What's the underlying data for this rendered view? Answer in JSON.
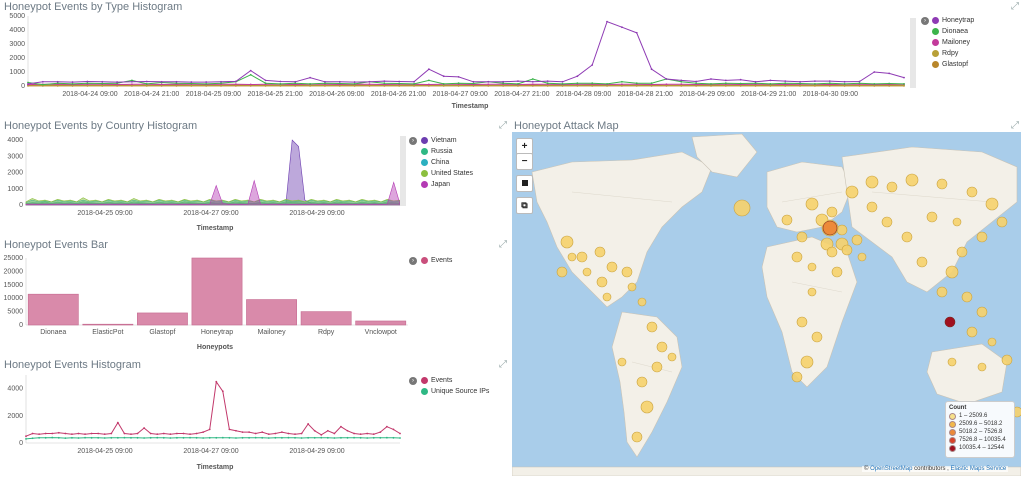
{
  "panels": {
    "type_histogram": {
      "title": "Honeypot Events by Type Histogram",
      "xlabel": "Timestamp",
      "yticks": [
        "5000",
        "4000",
        "3000",
        "2000",
        "1000",
        "0"
      ],
      "xticks": [
        "2018-04-24 09:00",
        "2018-04-24 21:00",
        "2018-04-25 09:00",
        "2018-04-25 21:00",
        "2018-04-26 09:00",
        "2018-04-26 21:00",
        "2018-04-27 09:00",
        "2018-04-27 21:00",
        "2018-04-28 09:00",
        "2018-04-28 21:00",
        "2018-04-29 09:00",
        "2018-04-29 21:00",
        "2018-04-30 09:00"
      ],
      "legend": [
        {
          "label": "Honeytrap",
          "color": "#8e3ab4"
        },
        {
          "label": "Dionaea",
          "color": "#3cb44b"
        },
        {
          "label": "Mailoney",
          "color": "#c33a9b"
        },
        {
          "label": "Rdpy",
          "color": "#b8a038"
        },
        {
          "label": "Glastopf",
          "color": "#b8862b"
        }
      ]
    },
    "country_histogram": {
      "title": "Honeypot Events by Country Histogram",
      "xlabel": "Timestamp",
      "yticks": [
        "4000",
        "3000",
        "2000",
        "1000",
        "0"
      ],
      "xticks": [
        "2018-04-25 09:00",
        "2018-04-27 09:00",
        "2018-04-29 09:00"
      ],
      "legend": [
        {
          "label": "Vietnam",
          "color": "#6c3db0"
        },
        {
          "label": "Russia",
          "color": "#2fb884"
        },
        {
          "label": "China",
          "color": "#2bb0c0"
        },
        {
          "label": "United States",
          "color": "#8cbf3f"
        },
        {
          "label": "Japan",
          "color": "#b43ab4"
        }
      ]
    },
    "events_bar": {
      "title": "Honeypot Events Bar",
      "xlabel": "Honeypots",
      "yticks": [
        "25000",
        "20000",
        "15000",
        "10000",
        "5000",
        "0"
      ],
      "legend": [
        {
          "label": "Events",
          "color": "#c94f7c"
        }
      ]
    },
    "events_histogram": {
      "title": "Honeypot Events Histogram",
      "xlabel": "Timestamp",
      "yticks": [
        "4000",
        "2000",
        "0"
      ],
      "xticks": [
        "2018-04-25 09:00",
        "2018-04-27 09:00",
        "2018-04-29 09:00"
      ],
      "legend": [
        {
          "label": "Events",
          "color": "#c2386b"
        },
        {
          "label": "Unique Source IPs",
          "color": "#2fb884"
        }
      ]
    },
    "attack_map": {
      "title": "Honeypot Attack Map",
      "controls": {
        "zoom_in": "+",
        "zoom_out": "−"
      },
      "legend_title": "Count",
      "legend": [
        {
          "label": "1 – 2509.6",
          "color": "#f7e08a"
        },
        {
          "label": "2509.6 – 5018.2",
          "color": "#f2b84b"
        },
        {
          "label": "5018.2 – 7526.8",
          "color": "#ec8a3a"
        },
        {
          "label": "7526.8 – 10035.4",
          "color": "#d9432a"
        },
        {
          "label": "10035.4 – 12544",
          "color": "#a0101f"
        }
      ],
      "attribution_prefix": "©",
      "attribution_osm": "OpenStreetMap",
      "attribution_mid": "contributors ,",
      "attribution_ems": "Elastic Maps Service"
    }
  },
  "chart_data": [
    {
      "type": "line",
      "title": "Honeypot Events by Type Histogram",
      "xlabel": "Timestamp",
      "ylim": [
        0,
        5000
      ],
      "y_ticks": [
        0,
        1000,
        2000,
        3000,
        4000,
        5000
      ],
      "series": [
        {
          "name": "Honeytrap",
          "color": "#8e3ab4",
          "values": [
            150,
            300,
            300,
            280,
            320,
            300,
            280,
            300,
            320,
            300,
            300,
            280,
            280,
            300,
            330,
            1100,
            400,
            320,
            300,
            600,
            300,
            300,
            280,
            300,
            350,
            320,
            300,
            1200,
            700,
            650,
            300,
            300,
            300,
            350,
            300,
            350,
            300,
            700,
            1500,
            4600,
            4200,
            3800,
            1200,
            500,
            400,
            320,
            500,
            400,
            450,
            300,
            400,
            350,
            300,
            350,
            350,
            300,
            320,
            1000,
            900,
            600
          ]
        },
        {
          "name": "Dionaea",
          "color": "#3cb44b",
          "values": [
            250,
            100,
            200,
            150,
            200,
            180,
            200,
            400,
            150,
            250,
            200,
            180,
            150,
            200,
            300,
            800,
            200,
            150,
            200,
            150,
            200,
            180,
            150,
            300,
            200,
            180,
            150,
            400,
            150,
            200,
            180,
            300,
            200,
            150,
            500,
            200,
            150,
            200,
            200,
            150,
            300,
            200,
            200,
            500,
            300,
            200,
            150,
            200,
            180,
            200,
            150,
            200,
            180,
            150,
            200,
            150,
            200,
            150,
            180,
            150
          ]
        },
        {
          "name": "Mailoney",
          "color": "#c33a9b",
          "values": [
            100,
            120,
            130,
            110,
            120,
            130,
            110,
            120,
            130,
            110,
            120,
            130,
            110,
            120,
            130,
            110,
            120,
            130,
            110,
            120,
            130,
            110,
            120,
            130,
            110,
            120,
            130,
            110,
            120,
            130,
            110,
            120,
            130,
            110,
            120,
            130,
            110,
            120,
            130,
            110,
            120,
            130,
            110,
            120,
            130,
            110,
            120,
            130,
            110,
            120,
            130,
            110,
            120,
            130,
            110,
            120,
            130,
            110,
            120,
            130
          ]
        },
        {
          "name": "Rdpy",
          "color": "#b8a038",
          "values": [
            50,
            60,
            70,
            60,
            50,
            60,
            70,
            60,
            50,
            60,
            70,
            60,
            50,
            60,
            70,
            60,
            50,
            60,
            70,
            60,
            50,
            60,
            70,
            60,
            50,
            60,
            70,
            60,
            50,
            60,
            70,
            60,
            50,
            60,
            70,
            60,
            50,
            60,
            70,
            60,
            50,
            60,
            70,
            60,
            50,
            60,
            70,
            60,
            50,
            60,
            70,
            60,
            50,
            60,
            70,
            60,
            50,
            60,
            70,
            60
          ]
        },
        {
          "name": "Glastopf",
          "color": "#b8862b",
          "values": [
            10,
            10,
            10,
            10,
            10,
            10,
            10,
            10,
            10,
            10,
            10,
            10,
            10,
            10,
            10,
            10,
            10,
            10,
            10,
            10,
            10,
            10,
            10,
            10,
            10,
            10,
            10,
            10,
            10,
            10,
            10,
            10,
            10,
            10,
            10,
            10,
            10,
            10,
            10,
            10,
            10,
            10,
            10,
            10,
            10,
            10,
            10,
            10,
            10,
            10,
            10,
            10,
            10,
            10,
            10,
            10,
            10,
            10,
            10,
            10
          ]
        }
      ]
    },
    {
      "type": "area",
      "title": "Honeypot Events by Country Histogram",
      "xlabel": "Timestamp",
      "ylim": [
        0,
        4000
      ],
      "series": [
        {
          "name": "Vietnam",
          "color": "#6c3db0",
          "values": [
            100,
            80,
            120,
            90,
            100,
            80,
            110,
            90,
            100,
            80,
            110,
            90,
            100,
            80,
            110,
            90,
            100,
            80,
            110,
            90,
            100,
            80,
            110,
            90,
            100,
            80,
            110,
            90,
            100,
            80,
            110,
            90,
            100,
            80,
            110,
            90,
            100,
            80,
            110,
            90,
            100,
            80,
            4000,
            3600,
            300,
            100,
            80,
            110,
            90,
            100,
            80,
            110,
            90,
            100,
            80,
            110,
            90,
            100,
            80,
            110
          ]
        },
        {
          "name": "Russia",
          "color": "#2fb884",
          "values": [
            80,
            150,
            120,
            200,
            100,
            180,
            120,
            150,
            100,
            200,
            150,
            120,
            100,
            180,
            120,
            150,
            100,
            200,
            150,
            120,
            100,
            180,
            120,
            150,
            100,
            200,
            150,
            120,
            100,
            180,
            120,
            150,
            100,
            200,
            150,
            120,
            100,
            180,
            120,
            150,
            100,
            200,
            150,
            120,
            100,
            180,
            120,
            150,
            100,
            200,
            150,
            120,
            100,
            180,
            120,
            150,
            100,
            200,
            150,
            120
          ]
        },
        {
          "name": "China",
          "color": "#2bb0c0",
          "values": [
            150,
            300,
            200,
            250,
            180,
            300,
            200,
            250,
            180,
            300,
            200,
            250,
            180,
            300,
            200,
            250,
            180,
            300,
            200,
            250,
            180,
            300,
            200,
            250,
            180,
            300,
            200,
            250,
            180,
            300,
            200,
            250,
            180,
            300,
            200,
            250,
            180,
            300,
            200,
            250,
            180,
            300,
            200,
            250,
            180,
            300,
            200,
            250,
            180,
            300,
            200,
            250,
            180,
            300,
            200,
            250,
            180,
            300,
            200,
            250
          ]
        },
        {
          "name": "United States",
          "color": "#8cbf3f",
          "values": [
            200,
            400,
            250,
            300,
            200,
            350,
            250,
            300,
            200,
            450,
            250,
            300,
            200,
            350,
            250,
            300,
            200,
            400,
            250,
            300,
            200,
            350,
            250,
            300,
            200,
            350,
            250,
            300,
            200,
            350,
            250,
            300,
            200,
            350,
            250,
            300,
            200,
            350,
            250,
            300,
            200,
            350,
            250,
            300,
            200,
            350,
            250,
            300,
            200,
            350,
            250,
            300,
            200,
            350,
            250,
            300,
            200,
            350,
            250,
            300
          ]
        },
        {
          "name": "Japan",
          "color": "#b43ab4",
          "values": [
            50,
            60,
            50,
            60,
            50,
            60,
            50,
            60,
            50,
            60,
            50,
            60,
            50,
            60,
            50,
            60,
            50,
            60,
            50,
            60,
            50,
            60,
            50,
            60,
            50,
            60,
            50,
            60,
            50,
            60,
            1200,
            100,
            50,
            60,
            50,
            60,
            1500,
            60,
            50,
            60,
            50,
            60,
            50,
            60,
            50,
            60,
            50,
            60,
            50,
            60,
            50,
            60,
            50,
            60,
            50,
            60,
            50,
            60,
            1400,
            60
          ]
        }
      ]
    },
    {
      "type": "bar",
      "title": "Honeypot Events Bar",
      "xlabel": "Honeypots",
      "ylim": [
        0,
        25000
      ],
      "categories": [
        "Dionaea",
        "ElasticPot",
        "Glastopf",
        "Honeytrap",
        "Mailoney",
        "Rdpy",
        "Vnclowpot"
      ],
      "series": [
        {
          "name": "Events",
          "color": "#c94f7c",
          "values": [
            11500,
            300,
            4500,
            26000,
            9500,
            5000,
            1500
          ]
        }
      ]
    },
    {
      "type": "line",
      "title": "Honeypot Events Histogram",
      "xlabel": "Timestamp",
      "ylim": [
        0,
        5000
      ],
      "series": [
        {
          "name": "Events",
          "color": "#c2386b",
          "values": [
            500,
            700,
            650,
            700,
            700,
            750,
            700,
            650,
            700,
            650,
            700,
            700,
            650,
            700,
            1500,
            700,
            650,
            700,
            1100,
            700,
            650,
            700,
            650,
            700,
            700,
            650,
            700,
            800,
            1000,
            4500,
            3800,
            1000,
            900,
            800,
            800,
            700,
            800,
            650,
            700,
            800,
            700,
            650,
            700,
            1400,
            900,
            600,
            900,
            700,
            1200,
            900,
            700,
            650,
            700,
            650,
            800,
            1200,
            1000,
            700
          ]
        },
        {
          "name": "Unique Source IPs",
          "color": "#2fb884",
          "values": [
            300,
            350,
            380,
            380,
            400,
            380,
            360,
            380,
            370,
            390,
            380,
            380,
            370,
            380,
            380,
            390,
            380,
            380,
            370,
            380,
            390,
            380,
            370,
            380,
            380,
            390,
            380,
            370,
            380,
            380,
            390,
            380,
            370,
            380,
            380,
            390,
            380,
            370,
            380,
            380,
            390,
            380,
            370,
            380,
            380,
            390,
            380,
            370,
            380,
            380,
            390,
            380,
            370,
            380,
            380,
            390,
            380,
            370
          ]
        }
      ]
    }
  ]
}
